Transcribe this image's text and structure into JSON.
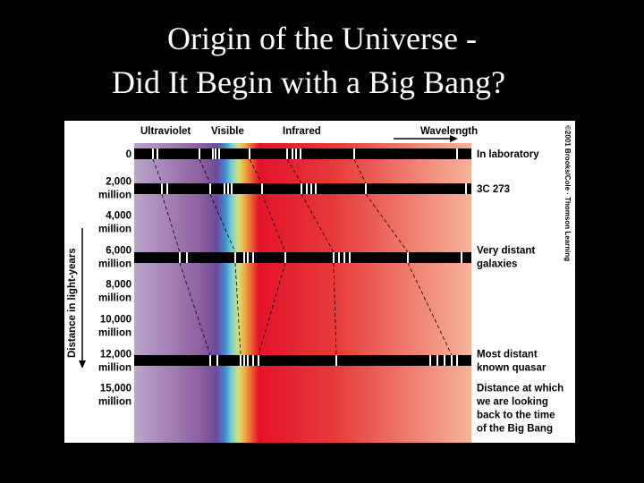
{
  "header": {
    "title_line1": "Origin of the Universe -",
    "title_line2": "Did It Begin with a Big Bang?"
  },
  "diagram": {
    "bands": {
      "ultraviolet": "Ultraviolet",
      "visible": "Visible",
      "infrared": "Infrared",
      "wavelength": "Wavelength"
    },
    "axis_title": "Distance in light-years",
    "distance_labels": [
      [
        "0"
      ],
      [
        "2,000",
        "million"
      ],
      [
        "4,000",
        "million"
      ],
      [
        "6,000",
        "million"
      ],
      [
        "8,000",
        "million"
      ],
      [
        "10,000",
        "million"
      ],
      [
        "12,000",
        "million"
      ],
      [
        "15,000",
        "million"
      ]
    ],
    "right_labels": [
      [
        "In laboratory"
      ],
      [
        "3C 273"
      ],
      [
        "Very distant",
        "galaxies"
      ],
      [
        "Most distant",
        "known quasar"
      ],
      [
        "Distance at which",
        "we are looking",
        "back to the time",
        "of the Big Bang"
      ]
    ],
    "credit": "©2001 Brooks/Cole · Thomson Learning"
  }
}
